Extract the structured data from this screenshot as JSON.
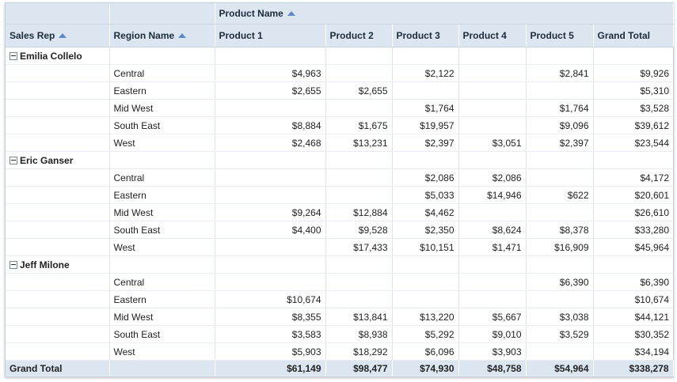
{
  "header": {
    "product_name": "Product Name",
    "sales_rep": "Sales Rep",
    "region_name": "Region Name",
    "products": [
      "Product 1",
      "Product 2",
      "Product 3",
      "Product 4",
      "Product 5"
    ],
    "grand_total": "Grand Total"
  },
  "reps": [
    {
      "name": "Emilia Collelo",
      "rows": [
        {
          "region": "Central",
          "values": [
            "$4,963",
            "",
            "$2,122",
            "",
            "$2,841"
          ],
          "total": "$9,926"
        },
        {
          "region": "Eastern",
          "values": [
            "$2,655",
            "$2,655",
            "",
            "",
            ""
          ],
          "total": "$5,310"
        },
        {
          "region": "Mid West",
          "values": [
            "",
            "",
            "$1,764",
            "",
            "$1,764"
          ],
          "total": "$3,528"
        },
        {
          "region": "South East",
          "values": [
            "$8,884",
            "$1,675",
            "$19,957",
            "",
            "$9,096"
          ],
          "total": "$39,612"
        },
        {
          "region": "West",
          "values": [
            "$2,468",
            "$13,231",
            "$2,397",
            "$3,051",
            "$2,397"
          ],
          "total": "$23,544"
        }
      ]
    },
    {
      "name": "Eric Ganser",
      "rows": [
        {
          "region": "Central",
          "values": [
            "",
            "",
            "$2,086",
            "$2,086",
            ""
          ],
          "total": "$4,172"
        },
        {
          "region": "Eastern",
          "values": [
            "",
            "",
            "$5,033",
            "$14,946",
            "$622"
          ],
          "total": "$20,601"
        },
        {
          "region": "Mid West",
          "values": [
            "$9,264",
            "$12,884",
            "$4,462",
            "",
            ""
          ],
          "total": "$26,610"
        },
        {
          "region": "South East",
          "values": [
            "$4,400",
            "$9,528",
            "$2,350",
            "$8,624",
            "$8,378"
          ],
          "total": "$33,280"
        },
        {
          "region": "West",
          "values": [
            "",
            "$17,433",
            "$10,151",
            "$1,471",
            "$16,909"
          ],
          "total": "$45,964"
        }
      ]
    },
    {
      "name": "Jeff Milone",
      "rows": [
        {
          "region": "Central",
          "values": [
            "",
            "",
            "",
            "",
            "$6,390"
          ],
          "total": "$6,390"
        },
        {
          "region": "Eastern",
          "values": [
            "$10,674",
            "",
            "",
            "",
            ""
          ],
          "total": "$10,674"
        },
        {
          "region": "Mid West",
          "values": [
            "$8,355",
            "$13,841",
            "$13,220",
            "$5,667",
            "$3,038"
          ],
          "total": "$44,121"
        },
        {
          "region": "South East",
          "values": [
            "$3,583",
            "$8,938",
            "$5,292",
            "$9,010",
            "$3,529"
          ],
          "total": "$30,352"
        },
        {
          "region": "West",
          "values": [
            "$5,903",
            "$18,292",
            "$6,096",
            "$3,903",
            ""
          ],
          "total": "$34,194"
        }
      ]
    }
  ],
  "grand_total_row": {
    "label": "Grand Total",
    "values": [
      "$61,149",
      "$98,477",
      "$74,930",
      "$48,758",
      "$54,964"
    ],
    "total": "$338,278"
  }
}
